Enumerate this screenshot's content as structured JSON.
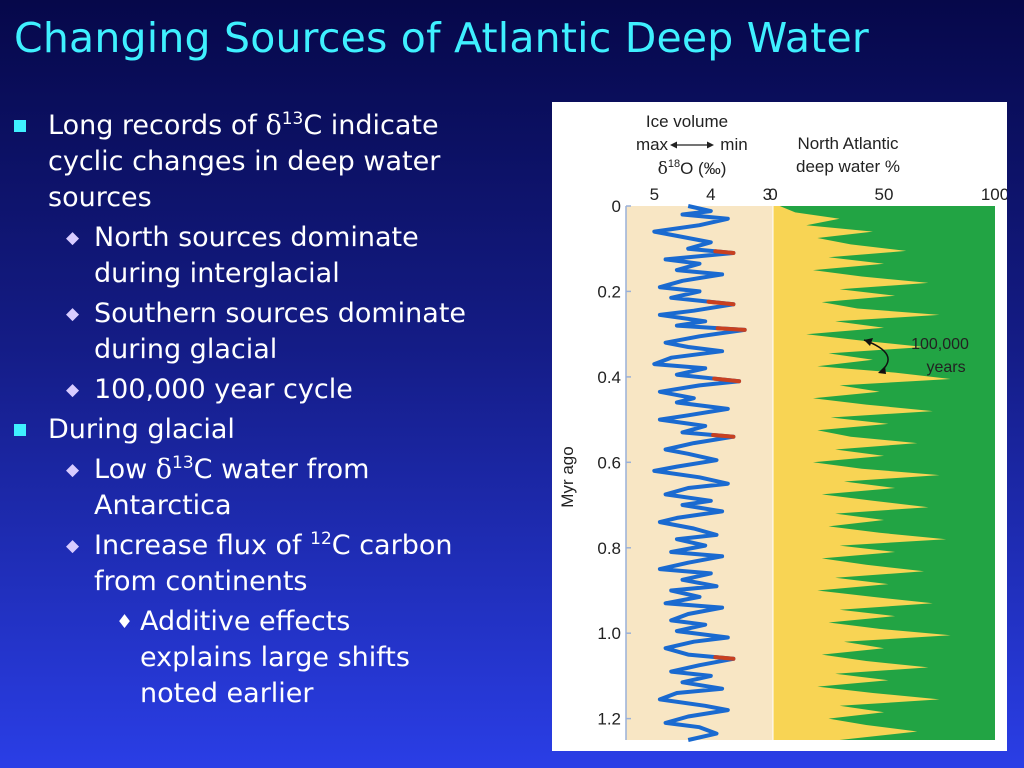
{
  "title": "Changing Sources of Atlantic Deep Water",
  "bullets": [
    {
      "lines": [
        {
          "pre": "Long records of ",
          "greek": "δ",
          "sup": "13",
          "post": "C indicate"
        },
        "cyclic changes in deep water",
        "sources"
      ]
    },
    {
      "lines": [
        "North sources dominate",
        "during interglacial"
      ]
    },
    {
      "lines": [
        "Southern sources dominate",
        "during glacial"
      ]
    },
    {
      "lines": [
        "100,000 year cycle"
      ]
    },
    {
      "lines": [
        "During glacial"
      ]
    },
    {
      "lines": [
        {
          "pre": "Low ",
          "greek": "δ",
          "sup": "13",
          "post": "C water from"
        },
        "Antarctica"
      ]
    },
    {
      "lines": [
        {
          "pre": "Increase flux of ",
          "sup": "12",
          "post": "C carbon"
        },
        "from continents"
      ]
    },
    {
      "lines": [
        "Additive effects",
        "explains large shifts",
        "noted earlier"
      ]
    }
  ],
  "chart_data": {
    "type": "line",
    "panel_ice": {
      "header": [
        "Ice volume",
        "max",
        "min"
      ],
      "unit": {
        "greek": "δ",
        "sup": "18",
        "post": "O (‰)"
      },
      "xticks": [
        "5",
        "4",
        "3"
      ],
      "xlim": [
        5.5,
        2.9
      ]
    },
    "panel_deep": {
      "header": [
        "North Atlantic",
        "deep water %"
      ],
      "xticks": [
        "0",
        "50",
        "100"
      ],
      "xlim": [
        0,
        100
      ]
    },
    "ylabel": "Myr ago",
    "yticks": [
      "0",
      "0.2",
      "0.4",
      "0.6",
      "0.8",
      "1.0",
      "1.2"
    ],
    "ylim": [
      0,
      1.25
    ],
    "annotation": [
      "100,000",
      "years"
    ],
    "colors": {
      "ice_bg": "#f8e6c4",
      "ice_line": "#1a6ad0",
      "glacial_tip": "#c84020",
      "north": "#22a444",
      "south": "#f8d454"
    },
    "series": [
      {
        "panel": "ice",
        "t": [
          0,
          0.012,
          0.02,
          0.03,
          0.045,
          0.06,
          0.07,
          0.085,
          0.1,
          0.11,
          0.125,
          0.135,
          0.15,
          0.16,
          0.175,
          0.19,
          0.2,
          0.215,
          0.23,
          0.245,
          0.255,
          0.27,
          0.28,
          0.29,
          0.305,
          0.32,
          0.33,
          0.34,
          0.355,
          0.37,
          0.38,
          0.395,
          0.41,
          0.42,
          0.435,
          0.45,
          0.46,
          0.475,
          0.49,
          0.5,
          0.515,
          0.53,
          0.54,
          0.555,
          0.57,
          0.58,
          0.595,
          0.61,
          0.62,
          0.635,
          0.65,
          0.66,
          0.675,
          0.69,
          0.7,
          0.715,
          0.73,
          0.74,
          0.755,
          0.77,
          0.78,
          0.795,
          0.81,
          0.82,
          0.835,
          0.85,
          0.86,
          0.875,
          0.89,
          0.9,
          0.915,
          0.93,
          0.94,
          0.955,
          0.97,
          0.98,
          0.995,
          1.01,
          1.02,
          1.035,
          1.05,
          1.06,
          1.075,
          1.09,
          1.1,
          1.115,
          1.13,
          1.14,
          1.155,
          1.17,
          1.18,
          1.195,
          1.21,
          1.22,
          1.235,
          1.25
        ],
        "values": [
          4.4,
          4.0,
          4.5,
          3.7,
          4.2,
          5.0,
          4.6,
          4.0,
          4.4,
          3.6,
          4.8,
          4.2,
          4.6,
          3.8,
          4.5,
          4.9,
          4.2,
          4.7,
          3.6,
          4.3,
          4.9,
          4.1,
          4.6,
          3.4,
          4.2,
          4.8,
          4.4,
          3.8,
          4.7,
          5.0,
          4.1,
          4.6,
          3.5,
          4.2,
          4.9,
          4.3,
          4.6,
          3.7,
          4.4,
          4.9,
          4.1,
          4.5,
          3.6,
          4.3,
          4.8,
          4.4,
          3.9,
          4.6,
          5.0,
          4.2,
          3.7,
          4.4,
          4.8,
          4.0,
          4.5,
          3.8,
          4.6,
          4.9,
          4.3,
          3.9,
          4.6,
          4.1,
          4.7,
          3.8,
          4.4,
          4.9,
          4.0,
          4.5,
          3.9,
          4.7,
          4.2,
          4.8,
          3.8,
          4.4,
          4.7,
          4.1,
          4.6,
          3.7,
          4.3,
          4.8,
          4.4,
          3.6,
          4.2,
          4.7,
          4.0,
          4.5,
          3.8,
          4.6,
          4.9,
          4.1,
          3.7,
          4.4,
          4.8,
          4.2,
          3.9,
          4.4
        ]
      },
      {
        "panel": "deep",
        "t": [
          0,
          0.015,
          0.03,
          0.045,
          0.06,
          0.075,
          0.09,
          0.105,
          0.12,
          0.135,
          0.15,
          0.165,
          0.18,
          0.195,
          0.21,
          0.225,
          0.24,
          0.255,
          0.27,
          0.285,
          0.3,
          0.315,
          0.33,
          0.345,
          0.36,
          0.375,
          0.39,
          0.405,
          0.42,
          0.435,
          0.45,
          0.465,
          0.48,
          0.495,
          0.51,
          0.525,
          0.54,
          0.555,
          0.57,
          0.585,
          0.6,
          0.615,
          0.63,
          0.645,
          0.66,
          0.675,
          0.69,
          0.705,
          0.72,
          0.735,
          0.75,
          0.765,
          0.78,
          0.795,
          0.81,
          0.825,
          0.84,
          0.855,
          0.87,
          0.885,
          0.9,
          0.915,
          0.93,
          0.945,
          0.96,
          0.975,
          0.99,
          1.005,
          1.02,
          1.035,
          1.05,
          1.065,
          1.08,
          1.095,
          1.11,
          1.125,
          1.14,
          1.155,
          1.17,
          1.185,
          1.2,
          1.215,
          1.23,
          1.25
        ],
        "values": [
          3,
          10,
          30,
          15,
          45,
          20,
          35,
          60,
          25,
          50,
          18,
          40,
          70,
          30,
          55,
          22,
          38,
          75,
          28,
          50,
          15,
          40,
          68,
          25,
          45,
          20,
          55,
          80,
          30,
          48,
          18,
          42,
          72,
          26,
          52,
          20,
          35,
          65,
          28,
          50,
          18,
          40,
          75,
          32,
          55,
          22,
          45,
          70,
          28,
          50,
          25,
          48,
          78,
          30,
          55,
          22,
          42,
          68,
          28,
          52,
          20,
          45,
          72,
          30,
          55,
          25,
          48,
          80,
          32,
          50,
          22,
          42,
          70,
          28,
          52,
          20,
          45,
          75,
          30,
          50,
          25,
          42,
          65,
          30
        ]
      }
    ]
  }
}
